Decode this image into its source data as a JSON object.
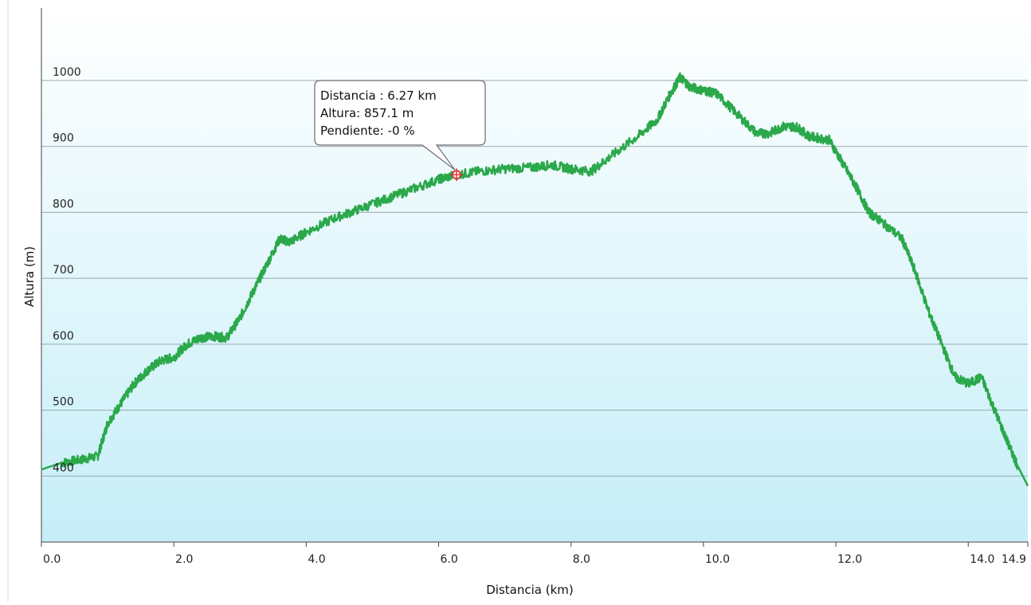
{
  "chart_data": {
    "type": "area",
    "xlabel": "Distancia  (km)",
    "ylabel": "Altura (m)",
    "xlim": [
      0,
      14.9
    ],
    "ylim": [
      300,
      1110
    ],
    "x_ticks": [
      {
        "value": 0.0,
        "label": "0.0"
      },
      {
        "value": 2.0,
        "label": "2.0"
      },
      {
        "value": 4.0,
        "label": "4.0"
      },
      {
        "value": 6.0,
        "label": "6.0"
      },
      {
        "value": 8.0,
        "label": "8.0"
      },
      {
        "value": 10.0,
        "label": "10.0"
      },
      {
        "value": 12.0,
        "label": "12.0"
      },
      {
        "value": 14.0,
        "label": "14.0"
      },
      {
        "value": 14.9,
        "label": "14.9"
      }
    ],
    "y_ticks": [
      {
        "value": 400,
        "label": "400"
      },
      {
        "value": 500,
        "label": "500"
      },
      {
        "value": 600,
        "label": "600"
      },
      {
        "value": 700,
        "label": "700"
      },
      {
        "value": 800,
        "label": "800"
      },
      {
        "value": 900,
        "label": "900"
      },
      {
        "value": 1000,
        "label": "1000"
      }
    ],
    "grid": true,
    "series": [
      {
        "color": "#2aa84a",
        "x": [
          0.0,
          0.3,
          0.6,
          0.85,
          1.0,
          1.2,
          1.4,
          1.6,
          1.8,
          2.0,
          2.2,
          2.4,
          2.6,
          2.8,
          3.0,
          3.2,
          3.4,
          3.6,
          3.75,
          4.0,
          4.4,
          4.8,
          5.2,
          5.6,
          6.0,
          6.27,
          6.6,
          7.0,
          7.4,
          7.7,
          8.0,
          8.3,
          8.6,
          9.0,
          9.3,
          9.5,
          9.65,
          9.8,
          10.0,
          10.2,
          10.5,
          10.8,
          11.0,
          11.2,
          11.4,
          11.6,
          11.9,
          12.1,
          12.3,
          12.5,
          12.7,
          13.0,
          13.2,
          13.4,
          13.6,
          13.8,
          14.0,
          14.2,
          14.4,
          14.6,
          14.75,
          14.9
        ],
        "y": [
          410,
          420,
          425,
          430,
          480,
          510,
          540,
          560,
          575,
          580,
          600,
          610,
          612,
          610,
          640,
          680,
          720,
          760,
          755,
          770,
          790,
          805,
          820,
          835,
          850,
          857.1,
          862,
          866,
          868,
          872,
          866,
          862,
          885,
          915,
          940,
          980,
          1005,
          990,
          985,
          980,
          950,
          920,
          920,
          930,
          930,
          915,
          910,
          875,
          840,
          800,
          785,
          760,
          710,
          650,
          600,
          550,
          540,
          550,
          500,
          450,
          415,
          385
        ]
      }
    ],
    "highlight_point": {
      "x": 6.27,
      "y": 857.1
    },
    "tooltip": {
      "line1": "Distancia  : 6.27 km",
      "line2": "Altura: 857.1 m",
      "line3": "Pendiente: -0 %"
    }
  },
  "colors": {
    "plot_bg_top": "#ffffff",
    "plot_bg_bottom": "#c6eef8",
    "line": "#2aa84a",
    "gridline": "#9aa8b0",
    "marker": "#e03030"
  }
}
